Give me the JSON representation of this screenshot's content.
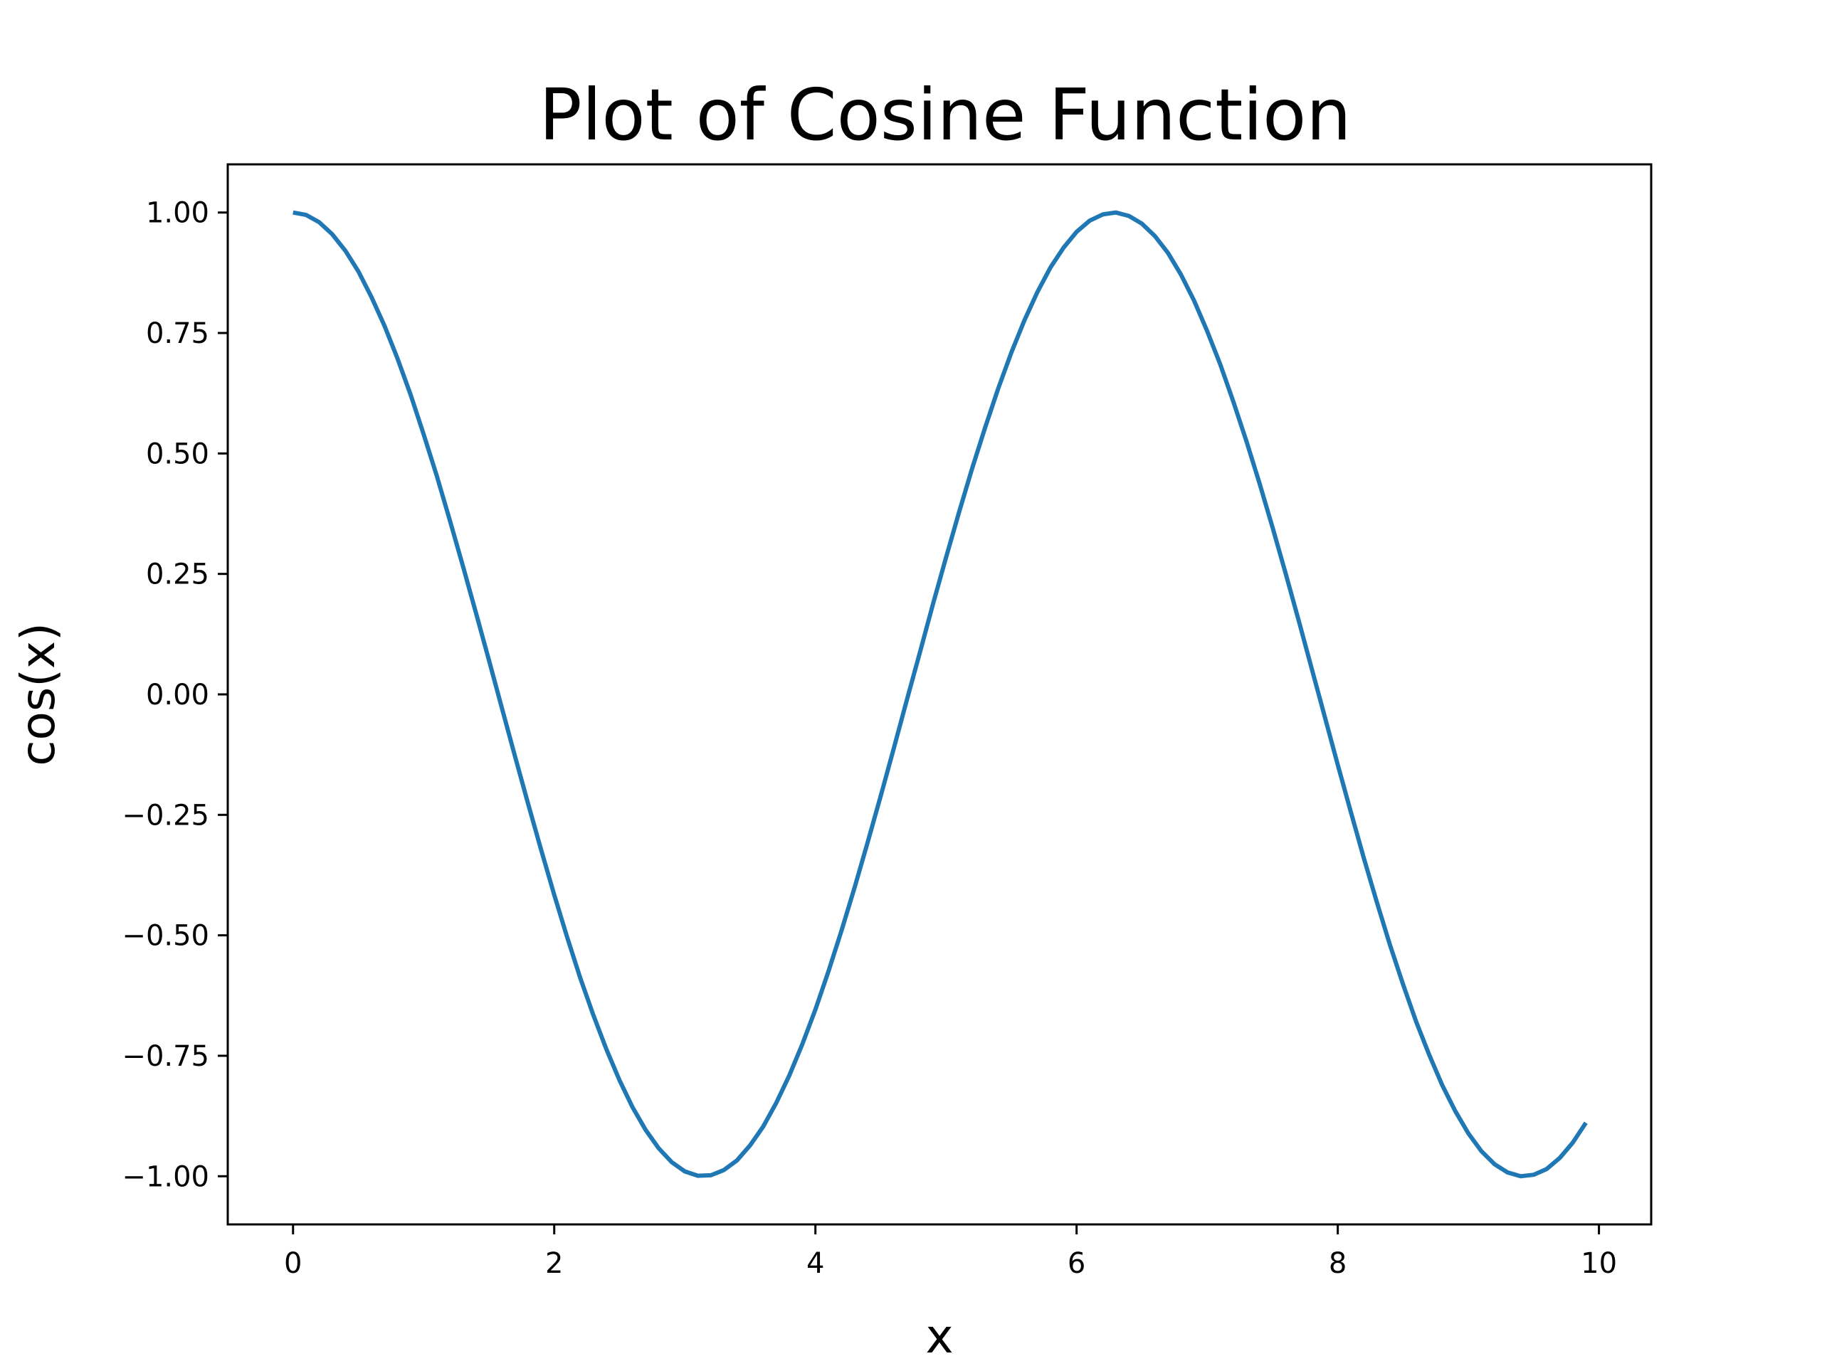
{
  "chart_data": {
    "type": "line",
    "title": "Plot of Cosine Function",
    "xlabel": "x",
    "ylabel": "cos(x)",
    "xlim": [
      -0.5,
      10.4
    ],
    "ylim": [
      -1.1,
      1.1
    ],
    "xticks": [
      0,
      2,
      4,
      6,
      8,
      10
    ],
    "xtick_labels": [
      "0",
      "2",
      "4",
      "6",
      "8",
      "10"
    ],
    "yticks": [
      1.0,
      0.75,
      0.5,
      0.25,
      0.0,
      -0.25,
      -0.5,
      -0.75,
      -1.0
    ],
    "ytick_labels": [
      "1.00",
      "0.75",
      "0.50",
      "0.25",
      "0.00",
      "−0.25",
      "−0.50",
      "−0.75",
      "−1.00"
    ],
    "grid": false,
    "series": [
      {
        "color": "#1f77b4",
        "x": [
          0.0,
          0.1,
          0.2,
          0.3,
          0.4,
          0.5,
          0.6,
          0.7,
          0.8,
          0.9,
          1.0,
          1.1,
          1.2,
          1.3,
          1.4,
          1.5,
          1.6,
          1.7,
          1.8,
          1.9,
          2.0,
          2.1,
          2.2,
          2.3,
          2.4,
          2.5,
          2.6,
          2.7,
          2.8,
          2.9,
          3.0,
          3.1,
          3.2,
          3.3,
          3.4,
          3.5,
          3.6,
          3.7,
          3.8,
          3.9,
          4.0,
          4.1,
          4.2,
          4.3,
          4.4,
          4.5,
          4.6,
          4.7,
          4.8,
          4.9,
          5.0,
          5.1,
          5.2,
          5.3,
          5.4,
          5.5,
          5.6,
          5.7,
          5.8,
          5.9,
          6.0,
          6.1,
          6.2,
          6.3,
          6.4,
          6.5,
          6.6,
          6.7,
          6.8,
          6.9,
          7.0,
          7.1,
          7.2,
          7.3,
          7.4,
          7.5,
          7.6,
          7.7,
          7.8,
          7.9,
          8.0,
          8.1,
          8.2,
          8.3,
          8.4,
          8.5,
          8.6,
          8.7,
          8.8,
          8.9,
          9.0,
          9.1,
          9.2,
          9.3,
          9.4,
          9.5,
          9.6,
          9.7,
          9.8,
          9.9
        ],
        "y": [
          1.0,
          0.995,
          0.98,
          0.955,
          0.921,
          0.878,
          0.825,
          0.765,
          0.697,
          0.622,
          0.54,
          0.454,
          0.362,
          0.267,
          0.17,
          0.071,
          -0.029,
          -0.129,
          -0.227,
          -0.323,
          -0.416,
          -0.505,
          -0.589,
          -0.666,
          -0.737,
          -0.801,
          -0.857,
          -0.904,
          -0.942,
          -0.971,
          -0.99,
          -0.999,
          -0.998,
          -0.987,
          -0.967,
          -0.936,
          -0.897,
          -0.848,
          -0.791,
          -0.726,
          -0.654,
          -0.575,
          -0.49,
          -0.401,
          -0.307,
          -0.211,
          -0.112,
          -0.012,
          0.087,
          0.187,
          0.284,
          0.378,
          0.469,
          0.554,
          0.635,
          0.709,
          0.776,
          0.835,
          0.886,
          0.927,
          0.96,
          0.983,
          0.996,
          1.0,
          0.993,
          0.977,
          0.951,
          0.916,
          0.871,
          0.817,
          0.754,
          0.685,
          0.608,
          0.526,
          0.439,
          0.347,
          0.252,
          0.154,
          0.054,
          -0.046,
          -0.146,
          -0.244,
          -0.34,
          -0.432,
          -0.52,
          -0.602,
          -0.679,
          -0.748,
          -0.811,
          -0.865,
          -0.911,
          -0.948,
          -0.975,
          -0.992,
          -1.0,
          -0.997,
          -0.985,
          -0.962,
          -0.93,
          -0.889
        ]
      }
    ]
  }
}
